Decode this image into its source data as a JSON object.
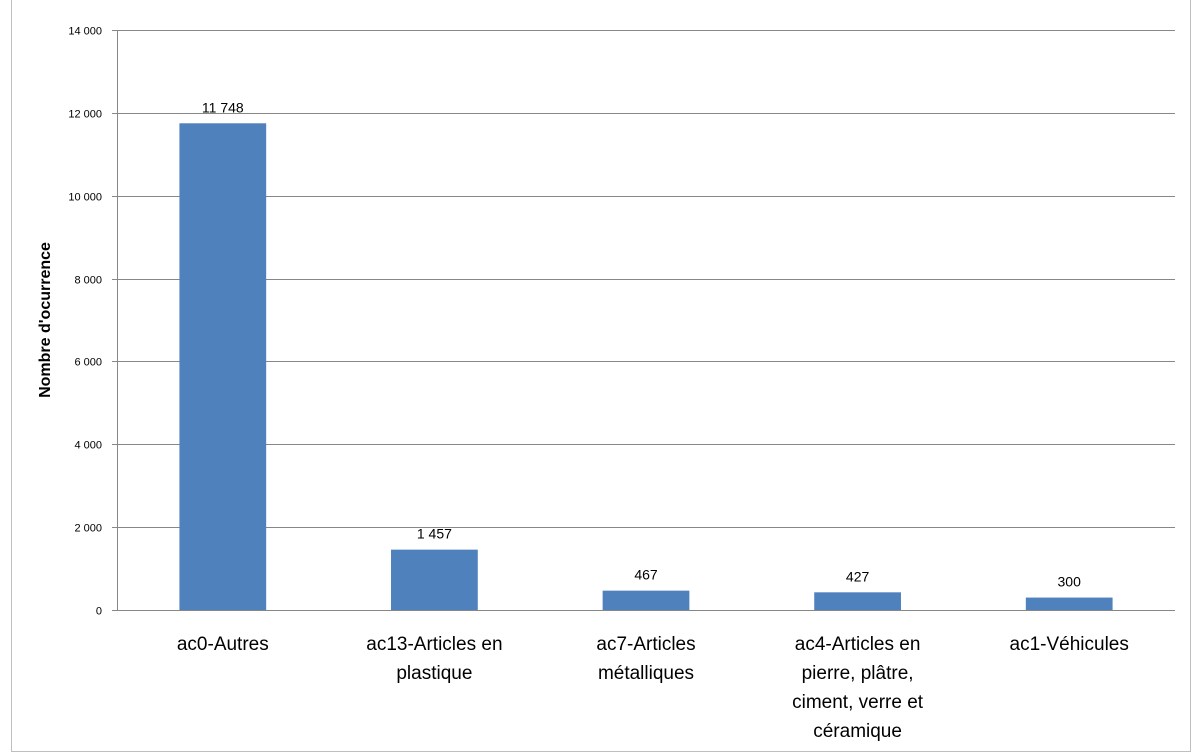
{
  "chart_data": {
    "type": "bar",
    "title": "",
    "xlabel": "",
    "ylabel": "Nombre d'ocurrence",
    "ylim": [
      0,
      14000
    ],
    "y_ticks": [
      0,
      2000,
      4000,
      6000,
      8000,
      10000,
      12000,
      14000
    ],
    "y_tick_labels": [
      "0",
      "2 000",
      "4 000",
      "6 000",
      "8 000",
      "10 000",
      "12 000",
      "14 000"
    ],
    "grid": true,
    "legend": "none",
    "bar_color": "#4f81bd",
    "categories": [
      "ac0-Autres",
      "ac13-Articles en plastique",
      "ac7-Articles métalliques",
      "ac4-Articles en pierre, plâtre, ciment, verre et céramique",
      "ac1-Véhicules"
    ],
    "category_lines": [
      [
        "ac0-Autres"
      ],
      [
        "ac13-Articles en",
        "plastique"
      ],
      [
        "ac7-Articles",
        "métalliques"
      ],
      [
        "ac4-Articles en",
        "pierre, plâtre,",
        "ciment, verre et",
        "céramique"
      ],
      [
        "ac1-Véhicules"
      ]
    ],
    "values": [
      11748,
      1457,
      467,
      427,
      300
    ],
    "data_labels": [
      "11 748",
      "1 457",
      "467",
      "427",
      "300"
    ]
  }
}
